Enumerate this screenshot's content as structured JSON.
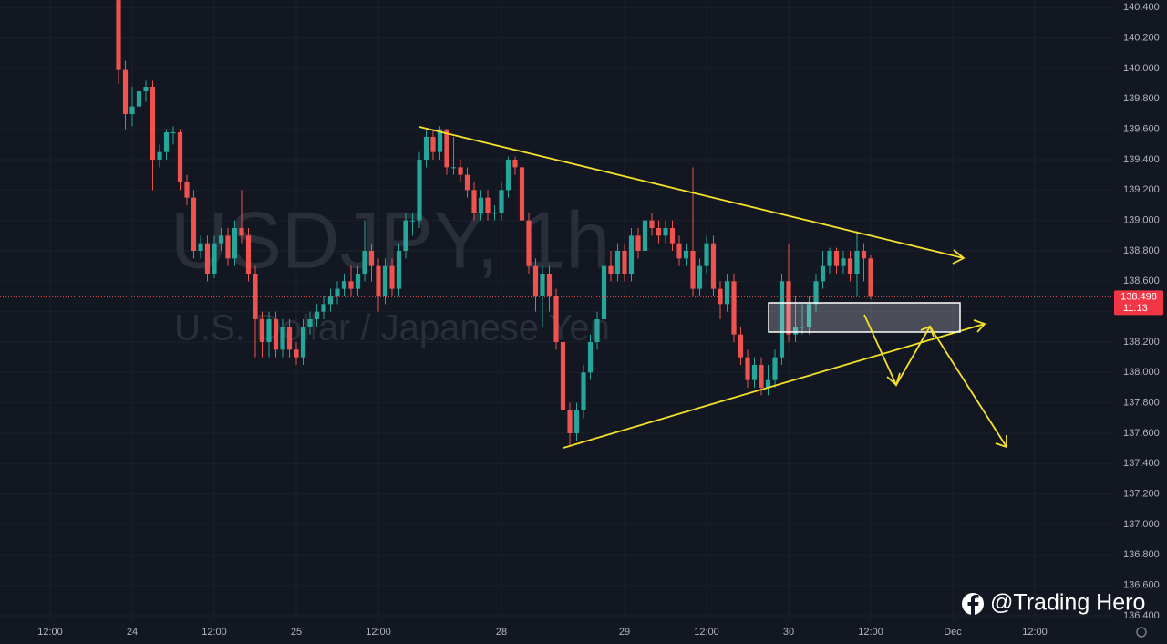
{
  "chart_data": {
    "type": "candlestick",
    "title": "USDJPY, 1h",
    "subtitle": "U.S. Dollar / Japanese Yen",
    "watermark": "@Trading Hero",
    "countdown": "11:13",
    "up_color": "#26a69a",
    "down_color": "#ef5350",
    "categories": [
      "12:00",
      null,
      null,
      null,
      null,
      null,
      null,
      null,
      null,
      null,
      null,
      null,
      "24",
      null,
      null,
      null,
      null,
      null,
      null,
      null,
      null,
      null,
      null,
      null,
      "12:00",
      null,
      null,
      null,
      null,
      null,
      null,
      null,
      null,
      null,
      null,
      null,
      "25",
      null,
      null,
      null,
      null,
      null,
      null,
      null,
      null,
      null,
      null,
      null,
      "12:00",
      null,
      null,
      null,
      null,
      null,
      null,
      null,
      null,
      null,
      null,
      null,
      null,
      null,
      null,
      null,
      null,
      null,
      "28",
      null,
      null,
      null,
      null,
      null,
      null,
      null,
      null,
      null,
      null,
      null,
      null,
      null,
      null,
      null,
      null,
      null,
      "29",
      null,
      null,
      null,
      null,
      null,
      null,
      null,
      null,
      null,
      null,
      null,
      "12:00",
      null,
      null,
      null,
      null,
      null,
      null,
      null,
      null,
      null,
      null,
      null,
      "30",
      null,
      null,
      null,
      null,
      null,
      null,
      null,
      null,
      null,
      null,
      null,
      "12:00",
      null,
      null,
      null,
      null,
      null,
      null,
      null,
      null,
      null,
      null,
      null,
      "Dec",
      null,
      null,
      null,
      null,
      null,
      null,
      null,
      null,
      null,
      null,
      null,
      "12:00"
    ],
    "open": [
      null,
      null,
      null,
      null,
      null,
      null,
      null,
      null,
      null,
      null,
      140.45,
      139.99,
      139.7,
      139.75,
      139.85,
      139.88,
      139.4,
      139.45,
      139.58,
      139.58,
      139.25,
      139.15,
      138.8,
      138.85,
      138.65,
      138.85,
      138.9,
      138.75,
      138.95,
      138.9,
      138.65,
      138.35,
      138.2,
      138.35,
      138.15,
      138.3,
      138.15,
      138.1,
      138.3,
      138.35,
      138.4,
      138.45,
      138.5,
      138.55,
      138.6,
      138.55,
      138.65,
      138.8,
      138.7,
      138.5,
      138.7,
      138.55,
      138.8,
      139.0,
      139.0,
      139.4,
      139.55,
      139.45,
      139.6,
      139.35,
      139.35,
      139.3,
      139.2,
      139.05,
      139.15,
      139.05,
      139.05,
      139.2,
      139.4,
      139.35,
      139.0,
      138.7,
      138.5,
      138.65,
      138.5,
      138.2,
      137.75,
      137.6,
      137.75,
      138.0,
      138.2,
      138.35,
      138.7,
      138.65,
      138.8,
      138.65,
      138.9,
      138.8,
      139.0,
      138.95,
      138.9,
      138.95,
      138.85,
      138.75,
      138.8,
      138.55,
      138.7,
      138.85,
      138.55,
      138.45,
      138.6,
      138.25,
      138.1,
      137.95,
      138.05,
      137.9,
      137.95,
      138.1,
      138.6,
      138.25,
      138.3,
      138.3,
      138.45,
      138.6,
      138.7,
      138.8,
      138.7,
      138.75,
      138.65,
      138.8,
      138.75,
      null,
      null,
      null,
      null,
      null,
      null,
      null,
      null,
      null,
      null,
      null,
      null,
      null,
      null,
      null,
      null,
      null,
      null,
      null,
      null,
      null,
      null,
      null,
      null
    ],
    "high": [
      null,
      null,
      null,
      null,
      null,
      null,
      null,
      null,
      null,
      null,
      140.45,
      140.05,
      139.88,
      139.9,
      139.92,
      139.92,
      139.5,
      139.6,
      139.62,
      139.6,
      139.3,
      139.2,
      138.9,
      138.9,
      138.9,
      138.95,
      138.95,
      139.0,
      139.2,
      138.95,
      138.7,
      138.4,
      138.4,
      138.4,
      138.35,
      138.35,
      138.2,
      138.35,
      138.4,
      138.45,
      138.5,
      138.55,
      138.6,
      138.65,
      138.7,
      138.7,
      139.0,
      138.85,
      138.75,
      138.75,
      138.75,
      138.85,
      139.05,
      139.05,
      139.45,
      139.6,
      139.6,
      139.62,
      139.6,
      139.55,
      139.4,
      139.35,
      139.25,
      139.2,
      139.2,
      139.1,
      139.25,
      139.42,
      139.42,
      139.4,
      139.05,
      138.75,
      138.7,
      138.7,
      138.55,
      138.25,
      137.8,
      137.8,
      138.05,
      138.25,
      138.4,
      138.75,
      138.8,
      138.85,
      138.85,
      138.95,
      138.95,
      139.05,
      139.05,
      139.0,
      139.0,
      139.0,
      138.9,
      138.85,
      139.35,
      138.75,
      138.9,
      138.9,
      138.6,
      138.65,
      138.65,
      138.3,
      138.15,
      138.1,
      138.1,
      138.05,
      138.15,
      138.65,
      138.85,
      138.5,
      138.45,
      138.5,
      138.65,
      138.8,
      138.82,
      138.82,
      138.8,
      138.8,
      138.93,
      138.85,
      138.77,
      null,
      null,
      null,
      null,
      null,
      null,
      null,
      null,
      null,
      null,
      null,
      null,
      null,
      null,
      null,
      null,
      null,
      null,
      null,
      null,
      null,
      null,
      null,
      null
    ],
    "low": [
      null,
      null,
      null,
      null,
      null,
      null,
      null,
      null,
      null,
      null,
      139.9,
      139.6,
      139.62,
      139.7,
      139.78,
      139.2,
      139.35,
      139.4,
      139.5,
      139.2,
      139.1,
      138.75,
      138.75,
      138.6,
      138.62,
      138.8,
      138.7,
      138.7,
      138.85,
      138.6,
      138.1,
      138.1,
      138.1,
      138.1,
      138.1,
      138.1,
      138.05,
      138.05,
      138.25,
      138.3,
      138.35,
      138.4,
      138.45,
      138.5,
      138.5,
      138.5,
      138.6,
      138.6,
      138.4,
      138.45,
      138.5,
      138.5,
      138.75,
      138.9,
      138.95,
      139.35,
      139.4,
      139.4,
      139.3,
      139.3,
      139.25,
      139.15,
      139.0,
      139.0,
      139.0,
      139.0,
      139.0,
      139.15,
      139.3,
      138.95,
      138.65,
      138.4,
      138.3,
      138.4,
      138.15,
      137.7,
      137.52,
      137.55,
      137.7,
      137.95,
      138.15,
      138.3,
      138.6,
      138.6,
      138.6,
      138.6,
      138.75,
      138.75,
      138.9,
      138.85,
      138.85,
      138.8,
      138.7,
      138.7,
      138.5,
      138.5,
      138.65,
      138.5,
      138.35,
      138.4,
      138.2,
      138.05,
      137.9,
      137.9,
      137.85,
      137.85,
      137.9,
      138.05,
      138.2,
      138.2,
      138.25,
      138.25,
      138.4,
      138.55,
      138.65,
      138.65,
      138.65,
      138.6,
      138.5,
      138.6,
      138.48,
      null,
      null,
      null,
      null,
      null,
      null,
      null,
      null,
      null,
      null,
      null,
      null,
      null,
      null,
      null,
      null,
      null,
      null,
      null,
      null,
      null,
      null,
      null,
      null
    ],
    "close": [
      null,
      null,
      null,
      null,
      null,
      null,
      null,
      null,
      null,
      null,
      139.99,
      139.7,
      139.75,
      139.85,
      139.88,
      139.4,
      139.45,
      139.58,
      139.58,
      139.25,
      139.15,
      138.8,
      138.85,
      138.65,
      138.85,
      138.9,
      138.75,
      138.95,
      138.9,
      138.65,
      138.35,
      138.2,
      138.35,
      138.15,
      138.3,
      138.15,
      138.1,
      138.3,
      138.35,
      138.4,
      138.45,
      138.5,
      138.55,
      138.6,
      138.55,
      138.65,
      138.8,
      138.7,
      138.5,
      138.7,
      138.55,
      138.8,
      139.0,
      139.0,
      139.4,
      139.55,
      139.45,
      139.6,
      139.35,
      139.35,
      139.3,
      139.2,
      139.05,
      139.15,
      139.05,
      139.05,
      139.2,
      139.4,
      139.35,
      139.0,
      138.7,
      138.5,
      138.65,
      138.5,
      138.2,
      137.75,
      137.6,
      137.75,
      138.0,
      138.2,
      138.35,
      138.7,
      138.65,
      138.8,
      138.65,
      138.9,
      138.8,
      139.0,
      138.95,
      138.9,
      138.95,
      138.85,
      138.75,
      138.8,
      138.55,
      138.7,
      138.85,
      138.55,
      138.45,
      138.6,
      138.25,
      138.1,
      137.95,
      138.05,
      137.9,
      137.95,
      138.1,
      138.6,
      138.25,
      138.3,
      138.3,
      138.45,
      138.6,
      138.7,
      138.8,
      138.7,
      138.75,
      138.65,
      138.8,
      138.75,
      138.498,
      null,
      null,
      null,
      null,
      null,
      null,
      null,
      null,
      null,
      null,
      null,
      null,
      null,
      null,
      null,
      null,
      null,
      null,
      null,
      null,
      null,
      null,
      null,
      null
    ],
    "ylim": [
      136.37,
      140.45
    ],
    "yticks": [
      {
        "value": 140.4,
        "label": "140.400"
      },
      {
        "value": 140.2,
        "label": "140.200"
      },
      {
        "value": 140.0,
        "label": "140.000"
      },
      {
        "value": 139.8,
        "label": "139.800"
      },
      {
        "value": 139.6,
        "label": "139.600"
      },
      {
        "value": 139.4,
        "label": "139.400"
      },
      {
        "value": 139.2,
        "label": "139.200"
      },
      {
        "value": 139.0,
        "label": "139.000"
      },
      {
        "value": 138.8,
        "label": "138.800"
      },
      {
        "value": 138.6,
        "label": "138.600"
      },
      {
        "value": 138.4,
        "label": "138.400"
      },
      {
        "value": 138.2,
        "label": "138.200"
      },
      {
        "value": 138.0,
        "label": "138.000"
      },
      {
        "value": 137.8,
        "label": "137.800"
      },
      {
        "value": 137.6,
        "label": "137.600"
      },
      {
        "value": 137.4,
        "label": "137.400"
      },
      {
        "value": 137.2,
        "label": "137.200"
      },
      {
        "value": 137.0,
        "label": "137.000"
      },
      {
        "value": 136.8,
        "label": "136.800"
      },
      {
        "value": 136.6,
        "label": "136.600"
      },
      {
        "value": 136.4,
        "label": "136.400"
      }
    ],
    "grid": true
  }
}
